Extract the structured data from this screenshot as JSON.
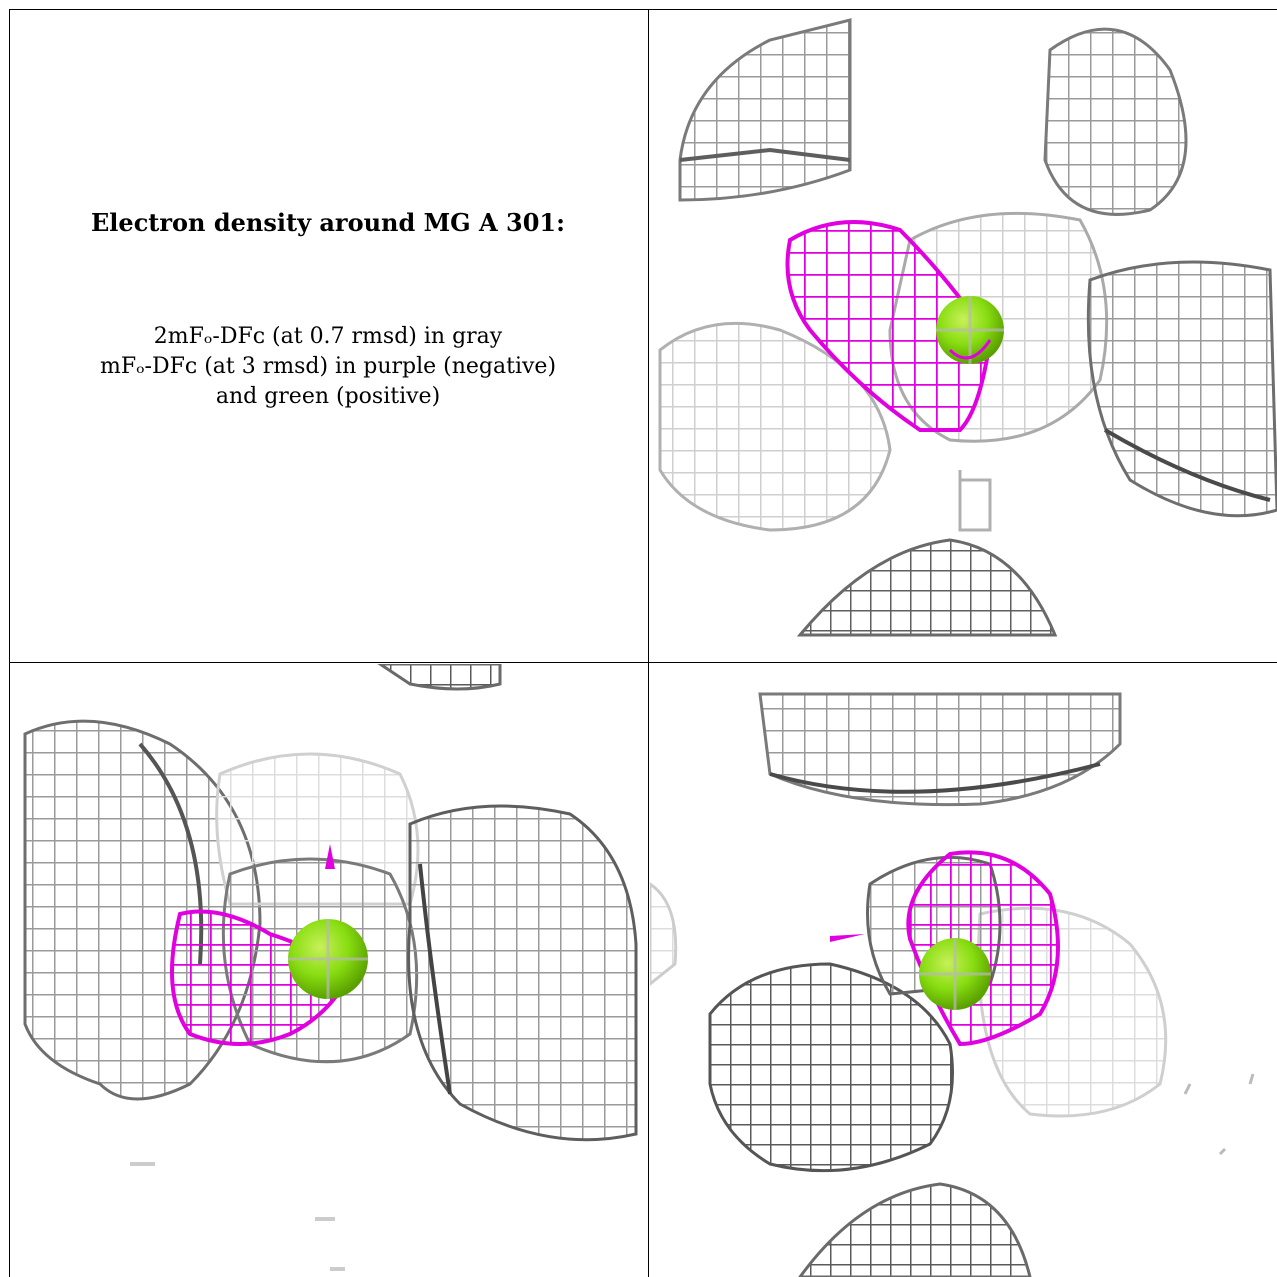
{
  "caption": {
    "title": "Electron density around MG A 301:",
    "line1": "2mFₒ-DFᴄ (at 0.7 rmsd) in gray",
    "line2": "mFₒ-DFᴄ (at 3 rmsd) in purple (negative)",
    "line3": "and green (positive)"
  },
  "colors": {
    "mesh_gray": "#9a9a9a",
    "mesh_dark": "#555555",
    "mesh_light": "#d4d4d4",
    "negative_density": "#e000e0",
    "positive_atom": "#88dd11"
  },
  "panels": [
    {
      "name": "view-1",
      "content": "gray mesh with purple negative density and green magnesium sphere"
    },
    {
      "name": "view-2",
      "content": "gray mesh with purple negative density and green magnesium sphere"
    },
    {
      "name": "view-3",
      "content": "gray mesh with purple negative density and green magnesium sphere"
    }
  ]
}
